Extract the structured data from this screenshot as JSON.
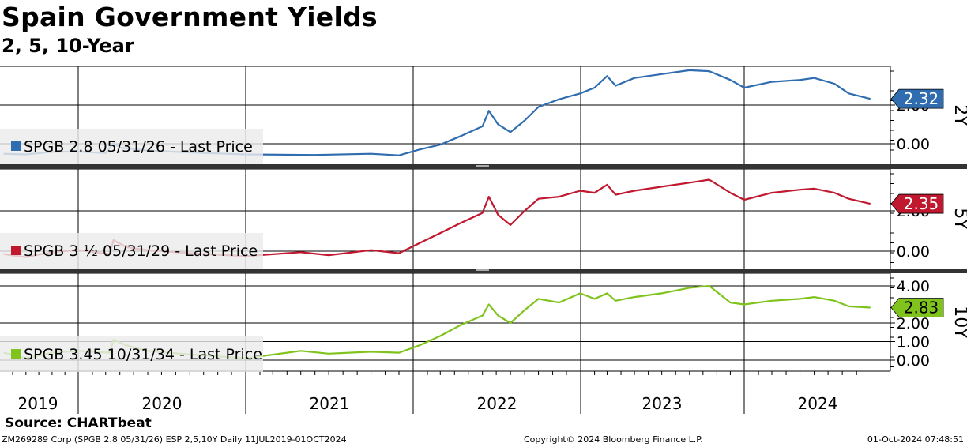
{
  "header": {
    "title": "Spain Government Yields",
    "subtitle": "2, 5, 10-Year"
  },
  "footer": {
    "source": "Source: CHARTbeat",
    "ticker_info": "ZM269289 Corp (SPGB 2.8 05/31/26) ESP 2,5,10Y  Daily 11JUL2019-01OCT2024",
    "copyright": "Copyright© 2024 Bloomberg Finance L.P.",
    "timestamp": "01-Oct-2024 07:48:51"
  },
  "colors": {
    "two_year": "#2f6db0",
    "five_year": "#c0182f",
    "ten_year": "#7fc31c",
    "legend_bg": "#ececec",
    "grid": "#000000"
  },
  "chart_data": {
    "type": "line",
    "x_ticks": [
      "2019",
      "2020",
      "2021",
      "2022",
      "2023",
      "2024"
    ],
    "x_range": [
      "2019-07-11",
      "2024-10-01"
    ],
    "panels": [
      {
        "id": "2Y",
        "axis_label": "2Y",
        "legend": "SPGB 2.8 05/31/26 - Last Price",
        "last_value": "2.32",
        "y_ticks": [
          "2.00",
          "0.00"
        ],
        "color": "#2f6db0",
        "series": [
          [
            "2019-07-11",
            -0.52
          ],
          [
            "2019-09-01",
            -0.55
          ],
          [
            "2019-11-01",
            -0.42
          ],
          [
            "2020-01-01",
            -0.4
          ],
          [
            "2020-03-01",
            -0.48
          ],
          [
            "2020-03-18",
            0.05
          ],
          [
            "2020-04-01",
            -0.2
          ],
          [
            "2020-06-01",
            -0.35
          ],
          [
            "2020-09-01",
            -0.45
          ],
          [
            "2021-01-01",
            -0.55
          ],
          [
            "2021-06-01",
            -0.58
          ],
          [
            "2021-10-01",
            -0.52
          ],
          [
            "2021-12-01",
            -0.6
          ],
          [
            "2022-01-15",
            -0.3
          ],
          [
            "2022-03-01",
            -0.05
          ],
          [
            "2022-04-15",
            0.4
          ],
          [
            "2022-06-01",
            0.9
          ],
          [
            "2022-06-15",
            1.7
          ],
          [
            "2022-07-05",
            1.0
          ],
          [
            "2022-08-01",
            0.6
          ],
          [
            "2022-09-01",
            1.2
          ],
          [
            "2022-10-01",
            1.9
          ],
          [
            "2022-11-15",
            2.3
          ],
          [
            "2022-12-31",
            2.6
          ],
          [
            "2023-02-01",
            2.9
          ],
          [
            "2023-03-01",
            3.5
          ],
          [
            "2023-03-20",
            3.0
          ],
          [
            "2023-05-01",
            3.4
          ],
          [
            "2023-07-01",
            3.6
          ],
          [
            "2023-09-01",
            3.8
          ],
          [
            "2023-10-15",
            3.75
          ],
          [
            "2023-12-01",
            3.3
          ],
          [
            "2024-01-01",
            2.9
          ],
          [
            "2024-03-01",
            3.2
          ],
          [
            "2024-05-01",
            3.3
          ],
          [
            "2024-06-01",
            3.4
          ],
          [
            "2024-07-15",
            3.1
          ],
          [
            "2024-08-15",
            2.6
          ],
          [
            "2024-10-01",
            2.32
          ]
        ]
      },
      {
        "id": "5Y",
        "axis_label": "5Y",
        "legend": "SPGB 3 ½ 05/31/29 - Last Price",
        "last_value": "2.35",
        "y_ticks": [
          "2.00",
          "0.00"
        ],
        "color": "#c0182f",
        "series": [
          [
            "2019-07-11",
            -0.15
          ],
          [
            "2019-09-01",
            -0.3
          ],
          [
            "2019-11-01",
            -0.05
          ],
          [
            "2020-01-01",
            0.05
          ],
          [
            "2020-03-10",
            -0.15
          ],
          [
            "2020-03-18",
            0.55
          ],
          [
            "2020-04-15",
            0.2
          ],
          [
            "2020-06-01",
            0.05
          ],
          [
            "2020-09-01",
            -0.1
          ],
          [
            "2021-01-01",
            -0.25
          ],
          [
            "2021-05-01",
            -0.05
          ],
          [
            "2021-07-01",
            -0.2
          ],
          [
            "2021-10-01",
            0.05
          ],
          [
            "2021-12-01",
            -0.1
          ],
          [
            "2022-01-15",
            0.4
          ],
          [
            "2022-03-01",
            0.9
          ],
          [
            "2022-04-15",
            1.4
          ],
          [
            "2022-06-01",
            1.9
          ],
          [
            "2022-06-15",
            2.7
          ],
          [
            "2022-07-05",
            1.8
          ],
          [
            "2022-08-01",
            1.3
          ],
          [
            "2022-09-01",
            2.0
          ],
          [
            "2022-10-01",
            2.6
          ],
          [
            "2022-11-15",
            2.7
          ],
          [
            "2022-12-31",
            3.0
          ],
          [
            "2023-02-01",
            2.9
          ],
          [
            "2023-03-01",
            3.3
          ],
          [
            "2023-03-20",
            2.8
          ],
          [
            "2023-05-01",
            3.0
          ],
          [
            "2023-07-01",
            3.2
          ],
          [
            "2023-09-01",
            3.4
          ],
          [
            "2023-10-15",
            3.55
          ],
          [
            "2023-12-01",
            2.9
          ],
          [
            "2024-01-01",
            2.55
          ],
          [
            "2024-03-01",
            2.9
          ],
          [
            "2024-05-01",
            3.05
          ],
          [
            "2024-06-01",
            3.1
          ],
          [
            "2024-07-15",
            2.9
          ],
          [
            "2024-08-15",
            2.6
          ],
          [
            "2024-10-01",
            2.35
          ]
        ]
      },
      {
        "id": "10Y",
        "axis_label": "10Y",
        "legend": "SPGB 3.45 10/31/34 - Last Price",
        "last_value": "2.83",
        "y_ticks": [
          "4.00",
          "2.00",
          "1.00",
          "0.00"
        ],
        "color": "#7fc31c",
        "series": [
          [
            "2019-07-11",
            0.4
          ],
          [
            "2019-09-01",
            0.1
          ],
          [
            "2019-11-01",
            0.4
          ],
          [
            "2020-01-01",
            0.5
          ],
          [
            "2020-03-10",
            0.4
          ],
          [
            "2020-03-18",
            1.1
          ],
          [
            "2020-04-15",
            0.8
          ],
          [
            "2020-06-01",
            0.5
          ],
          [
            "2020-09-01",
            0.3
          ],
          [
            "2021-01-01",
            0.1
          ],
          [
            "2021-05-01",
            0.5
          ],
          [
            "2021-07-01",
            0.35
          ],
          [
            "2021-10-01",
            0.45
          ],
          [
            "2021-12-01",
            0.4
          ],
          [
            "2022-01-15",
            0.8
          ],
          [
            "2022-03-01",
            1.3
          ],
          [
            "2022-04-15",
            1.9
          ],
          [
            "2022-06-01",
            2.4
          ],
          [
            "2022-06-15",
            3.0
          ],
          [
            "2022-07-05",
            2.4
          ],
          [
            "2022-08-01",
            2.0
          ],
          [
            "2022-09-01",
            2.7
          ],
          [
            "2022-10-01",
            3.3
          ],
          [
            "2022-11-15",
            3.1
          ],
          [
            "2022-12-31",
            3.6
          ],
          [
            "2023-02-01",
            3.3
          ],
          [
            "2023-03-01",
            3.6
          ],
          [
            "2023-03-20",
            3.2
          ],
          [
            "2023-05-01",
            3.4
          ],
          [
            "2023-07-01",
            3.6
          ],
          [
            "2023-09-01",
            3.9
          ],
          [
            "2023-10-15",
            4.0
          ],
          [
            "2023-12-01",
            3.1
          ],
          [
            "2024-01-01",
            3.0
          ],
          [
            "2024-03-01",
            3.2
          ],
          [
            "2024-05-01",
            3.3
          ],
          [
            "2024-06-01",
            3.4
          ],
          [
            "2024-07-15",
            3.2
          ],
          [
            "2024-08-15",
            2.9
          ],
          [
            "2024-10-01",
            2.83
          ]
        ]
      }
    ]
  }
}
